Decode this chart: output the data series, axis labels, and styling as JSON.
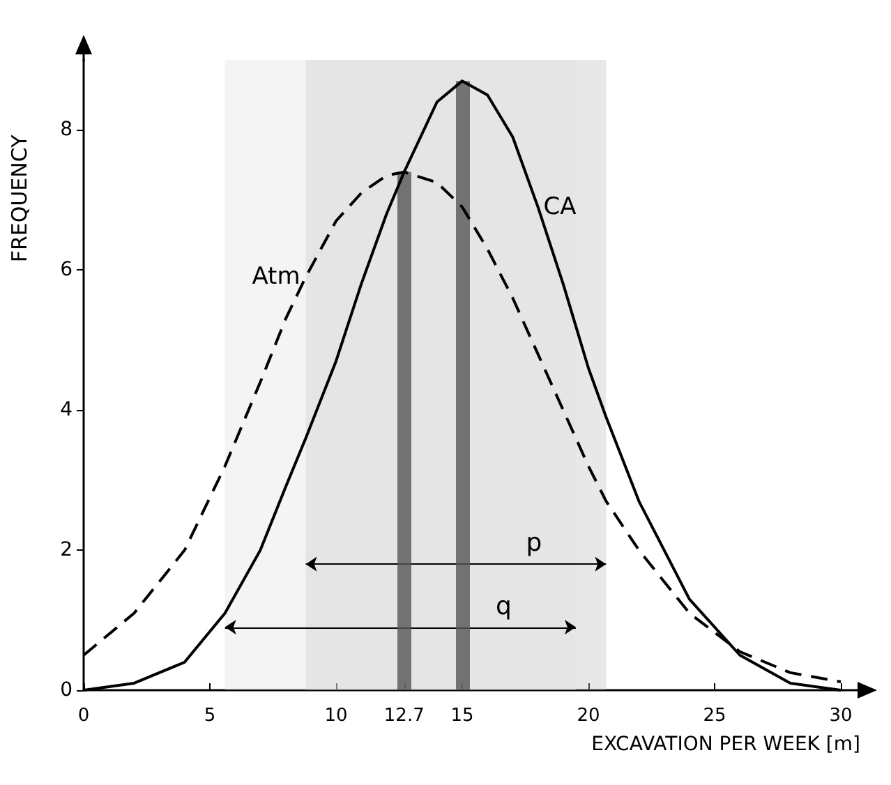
{
  "chart_data": {
    "type": "line",
    "xlabel": "EXCAVATION PER WEEK [m]",
    "ylabel": "FREQUENCY",
    "x": [
      0,
      2,
      4,
      5.6,
      7,
      8,
      8.8,
      10,
      11,
      12,
      12.7,
      14,
      15,
      16,
      17,
      18,
      19,
      19.5,
      20,
      20.7,
      22,
      24,
      26,
      28,
      30
    ],
    "series": [
      {
        "name": "Atm",
        "color": "#000000",
        "line_style": "dashed",
        "values": [
          0.5,
          1.1,
          2.0,
          3.2,
          4.4,
          5.3,
          5.9,
          6.7,
          7.1,
          7.35,
          7.4,
          7.25,
          6.9,
          6.3,
          5.6,
          4.8,
          4.0,
          3.6,
          3.2,
          2.7,
          2.0,
          1.1,
          0.55,
          0.25,
          0.12
        ]
      },
      {
        "name": "CA",
        "color": "#000000",
        "line_style": "solid",
        "values": [
          0.0,
          0.1,
          0.4,
          1.1,
          2.0,
          2.9,
          3.6,
          4.7,
          5.8,
          6.8,
          7.4,
          8.4,
          8.7,
          8.5,
          7.9,
          6.9,
          5.8,
          5.2,
          4.6,
          3.9,
          2.7,
          1.3,
          0.5,
          0.1,
          0.0
        ]
      }
    ],
    "bands": [
      {
        "axis": "x",
        "from": 8.8,
        "to": 20.7,
        "label": "p",
        "color": "#bdbdbd"
      },
      {
        "axis": "x",
        "from": 5.6,
        "to": 19.5,
        "label": "q",
        "color": "#e0e0e0"
      }
    ],
    "ref_lines": [
      {
        "axis": "x",
        "value": 12.7,
        "label": null
      },
      {
        "axis": "x",
        "value": 15,
        "label": null
      }
    ],
    "xlim": [
      0,
      30
    ],
    "xticks": [
      0,
      5,
      10,
      12.7,
      15,
      20,
      25,
      30
    ],
    "ylim": [
      0,
      9
    ],
    "yticks": [
      0,
      2,
      4,
      6,
      8
    ],
    "grid": false,
    "legend": false,
    "marker": "none"
  }
}
